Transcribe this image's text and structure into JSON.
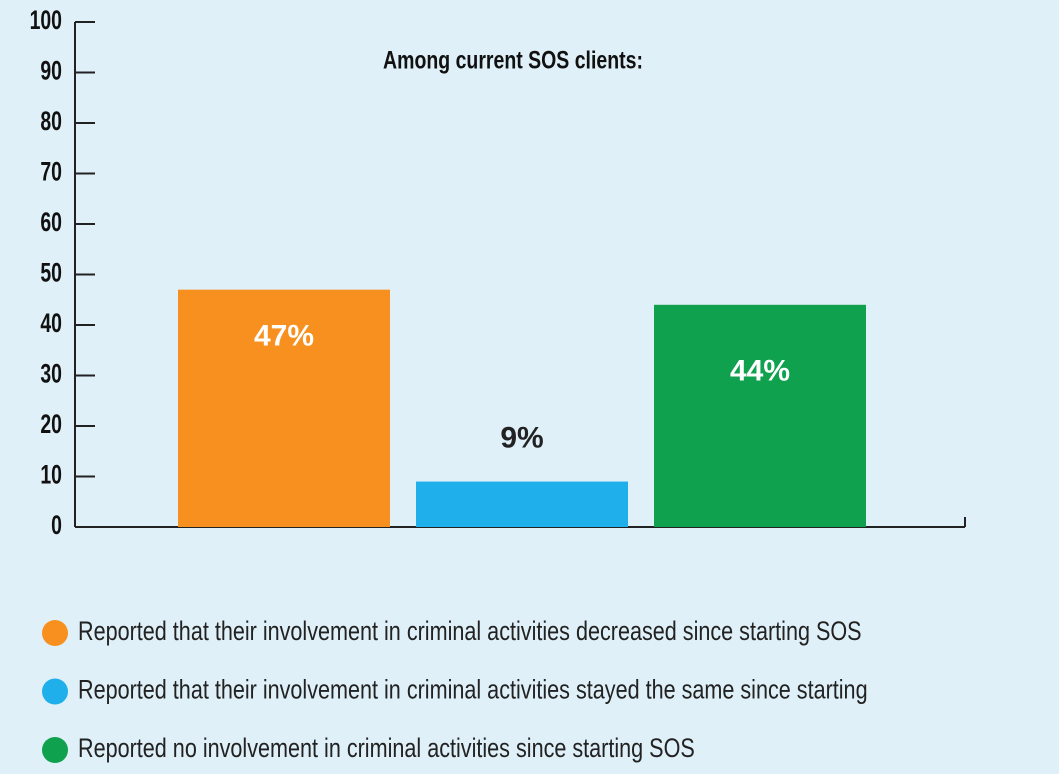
{
  "chart_data": {
    "type": "bar",
    "title": "Among current SOS clients:",
    "categories": [
      "Reported that their involvement in criminal activities decreased since starting SOS",
      "Reported that their involvement in criminal activities stayed the same since starting",
      "Reported no involvement in criminal activities since starting SOS"
    ],
    "values": [
      47,
      9,
      44
    ],
    "value_labels": [
      "47%",
      "9%",
      "44%"
    ],
    "colors": [
      "#f7901e",
      "#1fb0ec",
      "#0fa14d"
    ],
    "ylim": [
      0,
      100
    ],
    "yticks": [
      0,
      10,
      20,
      30,
      40,
      50,
      60,
      70,
      80,
      90,
      100
    ]
  }
}
